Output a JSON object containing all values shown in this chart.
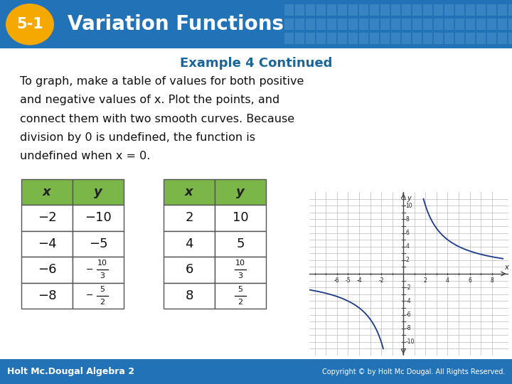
{
  "header_bg": "#2272b8",
  "header_label_bg": "#f5a800",
  "header_label_text": "5-1",
  "header_title": "Variation Functions",
  "example_title": "Example 4 Continued",
  "body_lines": [
    "To graph, make a table of values for both positive",
    "and negative values of x. Plot the points, and",
    "connect them with two smooth curves. Because",
    "division by 0 is undefined, the function is",
    "undefined when x = 0."
  ],
  "table_header_bg": "#7ab648",
  "table_border": "#555555",
  "table1_data": [
    [
      "-2",
      "-10"
    ],
    [
      "-4",
      "-5"
    ],
    [
      "-6",
      "frac:-10:3"
    ],
    [
      "-8",
      "frac:-5:2"
    ]
  ],
  "table2_data": [
    [
      "2",
      "10"
    ],
    [
      "4",
      "5"
    ],
    [
      "6",
      "frac:10:3"
    ],
    [
      "8",
      "frac:5:2"
    ]
  ],
  "curve_color": "#1a3a8a",
  "footer_left": "Holt Mc.Dougal Algebra 2",
  "footer_right": "Copyright © by Holt Mc Dougal. All Rights Reserved.",
  "footer_bg": "#2272b8",
  "bg_color": "#ffffff",
  "k": 20,
  "example_title_color": "#1a6699",
  "body_text_color": "#111111"
}
